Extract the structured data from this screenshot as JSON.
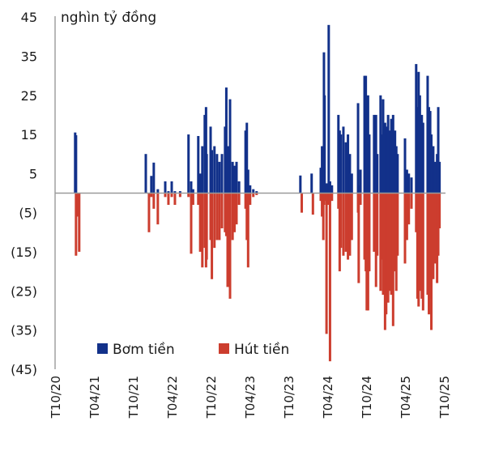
{
  "chart_data": {
    "type": "bar",
    "unit_label": "nghìn tỷ đồng",
    "ylim": [
      -45,
      45
    ],
    "y_ticks": [
      45,
      35,
      25,
      15,
      5,
      -5,
      -15,
      -25,
      -35,
      -45
    ],
    "y_tick_labels": [
      "45",
      "35",
      "25",
      "15",
      "5",
      "(5)",
      "(15)",
      "(25)",
      "(35)",
      "(45)"
    ],
    "x_ticks": [
      "2020-10-01",
      "2021-04-01",
      "2021-10-01",
      "2022-04-01",
      "2022-10-01",
      "2023-04-01",
      "2023-10-01",
      "2024-04-01",
      "2024-10-01",
      "2025-04-01",
      "2025-10-01"
    ],
    "x_tick_labels": [
      "T10/20",
      "T04/21",
      "T10/21",
      "T04/22",
      "T10/22",
      "T04/23",
      "T10/23",
      "T04/24",
      "T10/24",
      "T04/25",
      "T10/25"
    ],
    "grid": false,
    "legend_position": "bottom-center",
    "series": [
      {
        "name": "Bơm tiền",
        "color": "#12318a"
      },
      {
        "name": "Hút tiền",
        "color": "#cc3d2e"
      }
    ],
    "data_columns": [
      "date",
      "Bơm tiền",
      "Hút tiền"
    ],
    "data": [
      [
        "2021-01-04",
        15.5,
        0
      ],
      [
        "2021-01-08",
        14.8,
        -16
      ],
      [
        "2021-01-13",
        0,
        -6
      ],
      [
        "2021-01-23",
        0,
        -15
      ],
      [
        "2021-12-01",
        10,
        0
      ],
      [
        "2021-12-16",
        0,
        -10
      ],
      [
        "2021-12-27",
        4.4,
        -1
      ],
      [
        "2022-01-08",
        7.8,
        -4
      ],
      [
        "2022-01-27",
        1,
        -8
      ],
      [
        "2022-03-01",
        3,
        -1
      ],
      [
        "2022-03-16",
        0.5,
        -3
      ],
      [
        "2022-04-01",
        3,
        -1
      ],
      [
        "2022-04-16",
        0.5,
        -3
      ],
      [
        "2022-05-10",
        0.5,
        -1
      ],
      [
        "2022-06-19",
        15,
        -1
      ],
      [
        "2022-07-01",
        3,
        -15.5
      ],
      [
        "2022-07-10",
        1,
        -3
      ],
      [
        "2022-08-04",
        14.6,
        -3
      ],
      [
        "2022-08-13",
        5,
        -15
      ],
      [
        "2022-08-23",
        12,
        -19
      ],
      [
        "2022-09-04",
        20,
        -14
      ],
      [
        "2022-09-10",
        22,
        -19
      ],
      [
        "2022-09-13",
        10,
        -17
      ],
      [
        "2022-10-01",
        17,
        -12
      ],
      [
        "2022-10-07",
        11,
        -22
      ],
      [
        "2022-10-19",
        12,
        -14
      ],
      [
        "2022-10-31",
        10,
        -12
      ],
      [
        "2022-11-12",
        8,
        -12
      ],
      [
        "2022-11-24",
        10,
        -9
      ],
      [
        "2022-12-08",
        17,
        -10
      ],
      [
        "2022-12-14",
        27,
        -11
      ],
      [
        "2022-12-20",
        12,
        -24
      ],
      [
        "2023-01-01",
        24,
        -27
      ],
      [
        "2023-01-13",
        8,
        -12
      ],
      [
        "2023-01-22",
        7,
        -10
      ],
      [
        "2023-02-01",
        8,
        -8
      ],
      [
        "2023-02-13",
        3,
        -3
      ],
      [
        "2023-03-13",
        16,
        -4
      ],
      [
        "2023-03-19",
        18,
        -12
      ],
      [
        "2023-03-25",
        6,
        -19
      ],
      [
        "2023-04-04",
        2,
        -3
      ],
      [
        "2023-04-19",
        1,
        -1
      ],
      [
        "2023-05-04",
        0.5,
        -0.5
      ],
      [
        "2023-11-27",
        4.5,
        0
      ],
      [
        "2023-12-03",
        0,
        -5
      ],
      [
        "2024-01-19",
        5,
        0
      ],
      [
        "2024-01-25",
        0,
        -5.5
      ],
      [
        "2024-03-01",
        6.5,
        -2
      ],
      [
        "2024-03-07",
        12,
        -6
      ],
      [
        "2024-03-13",
        12,
        -12
      ],
      [
        "2024-03-16",
        36,
        -3
      ],
      [
        "2024-03-19",
        25,
        -2
      ],
      [
        "2024-03-28",
        2.5,
        -36
      ],
      [
        "2024-04-08",
        43,
        -3
      ],
      [
        "2024-04-14",
        3,
        -43
      ],
      [
        "2024-04-23",
        2,
        -2
      ],
      [
        "2024-05-23",
        20,
        -4
      ],
      [
        "2024-05-29",
        16,
        -20
      ],
      [
        "2024-06-04",
        15,
        -14
      ],
      [
        "2024-06-16",
        17,
        -16
      ],
      [
        "2024-06-28",
        13,
        -15
      ],
      [
        "2024-07-07",
        15,
        -17
      ],
      [
        "2024-07-16",
        10,
        -16
      ],
      [
        "2024-07-25",
        5,
        -12
      ],
      [
        "2024-08-24",
        23,
        -5
      ],
      [
        "2024-08-27",
        2,
        -23
      ],
      [
        "2024-09-05",
        6,
        -3
      ],
      [
        "2024-09-24",
        30,
        -17
      ],
      [
        "2024-09-30",
        30,
        -20
      ],
      [
        "2024-10-04",
        20,
        -30
      ],
      [
        "2024-10-10",
        25,
        -30
      ],
      [
        "2024-10-16",
        15,
        -20
      ],
      [
        "2024-11-08",
        20,
        -15
      ],
      [
        "2024-11-17",
        20,
        -24
      ],
      [
        "2024-11-23",
        10,
        -16
      ],
      [
        "2024-12-08",
        25,
        -25
      ],
      [
        "2024-12-14",
        15,
        -17
      ],
      [
        "2024-12-20",
        24,
        -26
      ],
      [
        "2024-12-29",
        18,
        -35
      ],
      [
        "2025-01-04",
        17,
        -31
      ],
      [
        "2025-01-13",
        20,
        -28
      ],
      [
        "2025-01-22",
        16,
        -25
      ],
      [
        "2025-01-28",
        19,
        -26
      ],
      [
        "2025-02-06",
        20,
        -34
      ],
      [
        "2025-02-15",
        16,
        -20
      ],
      [
        "2025-02-21",
        12,
        -25
      ],
      [
        "2025-02-27",
        10,
        -16
      ],
      [
        "2025-04-01",
        14,
        -18
      ],
      [
        "2025-04-10",
        6,
        -12
      ],
      [
        "2025-04-19",
        5,
        -8
      ],
      [
        "2025-05-01",
        4,
        -4
      ],
      [
        "2025-05-23",
        33,
        -10
      ],
      [
        "2025-05-29",
        22,
        -27
      ],
      [
        "2025-06-04",
        31,
        -29
      ],
      [
        "2025-06-10",
        25,
        -25
      ],
      [
        "2025-06-19",
        20,
        -27
      ],
      [
        "2025-06-25",
        18,
        -30
      ],
      [
        "2025-07-16",
        30,
        -26
      ],
      [
        "2025-07-22",
        22,
        -31
      ],
      [
        "2025-07-28",
        21,
        -27
      ],
      [
        "2025-08-03",
        15,
        -35
      ],
      [
        "2025-08-12",
        12,
        -22
      ],
      [
        "2025-08-21",
        8,
        -18
      ],
      [
        "2025-08-30",
        10,
        -23
      ],
      [
        "2025-09-05",
        22,
        -16
      ],
      [
        "2025-09-11",
        8,
        -9
      ]
    ]
  }
}
